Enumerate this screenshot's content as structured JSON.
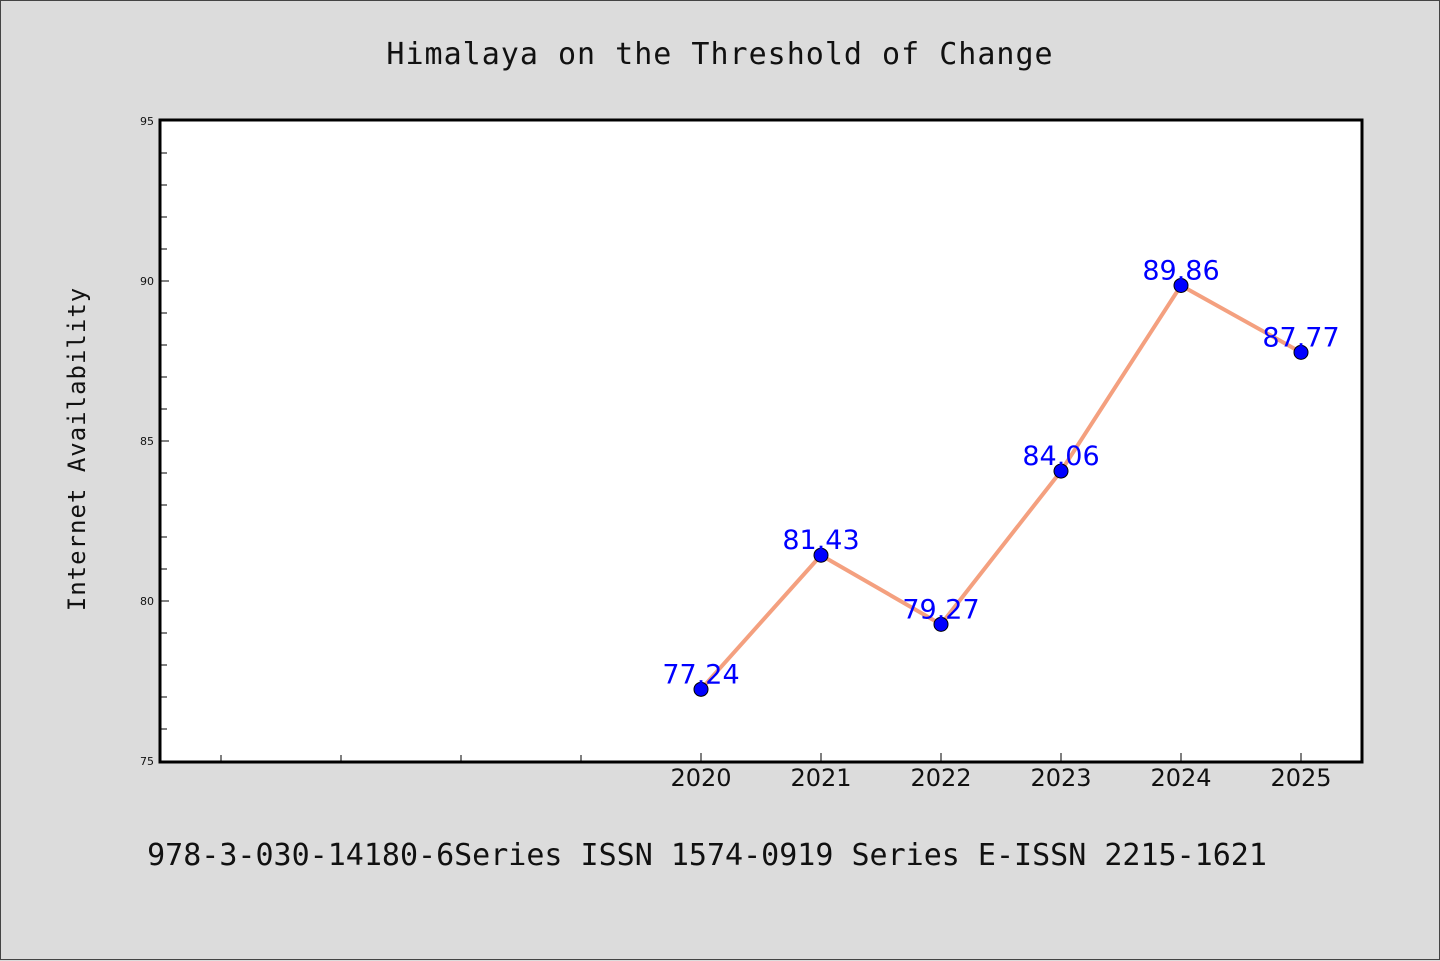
{
  "colors": {
    "background": "#dcdcdc",
    "plot_background": "#ffffff",
    "line": "#f4a07f",
    "marker": "#0000ff",
    "data_label": "#0000ff"
  },
  "chart_data": {
    "type": "line",
    "title": "Himalaya on the Threshold of Change",
    "xlabel": "",
    "ylabel": "Internet Availability",
    "x": [
      "2020",
      "2021",
      "2022",
      "2023",
      "2024",
      "2025"
    ],
    "series": [
      {
        "values": [
          77.24,
          81.43,
          79.27,
          84.06,
          89.86,
          87.77
        ]
      }
    ],
    "data_labels": [
      "77.24",
      "81.43",
      "79.27",
      "84.06",
      "89.86",
      "87.77"
    ],
    "ylim": [
      75,
      95
    ],
    "y_ticks": [
      "75",
      "80",
      "85",
      "90",
      "95"
    ],
    "grid": false,
    "legend": "none"
  },
  "footer": {
    "text": "978-3-030-14180-6Series ISSN 1574-0919 Series E-ISSN 2215-1621"
  }
}
